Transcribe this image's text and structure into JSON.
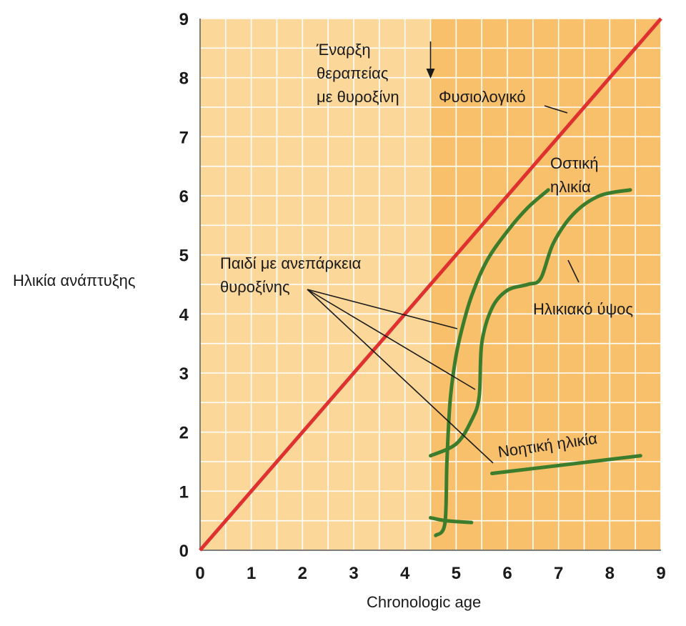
{
  "chart_data": {
    "type": "line",
    "xlabel": "Chronologic age",
    "ylabel": "Ηλικία ανάπτυξης",
    "xlim": [
      0,
      9
    ],
    "ylim": [
      0,
      9
    ],
    "x_ticks": [
      "0",
      "1",
      "2",
      "3",
      "4",
      "5",
      "6",
      "7",
      "8",
      "9"
    ],
    "y_ticks": [
      "0",
      "1",
      "2",
      "3",
      "4",
      "5",
      "6",
      "7",
      "8",
      "9"
    ],
    "grid": true,
    "therapy_start_x": 4.5,
    "colors": {
      "background_before_therapy": "#fcd79a",
      "background_after_therapy": "#f8c06a",
      "normal_line": "#e03131",
      "child_curves": "#3b7d2c"
    },
    "series": [
      {
        "name": "Φυσιολογικό",
        "x": [
          0,
          9
        ],
        "y": [
          0,
          9
        ]
      },
      {
        "name": "Οστική ηλικία",
        "x": [
          4.6,
          4.78,
          4.82,
          4.88,
          4.98,
          5.1,
          5.3,
          5.6,
          6.0,
          6.4,
          6.8
        ],
        "y": [
          0.25,
          0.45,
          1.5,
          2.5,
          3.2,
          3.7,
          4.3,
          4.9,
          5.4,
          5.8,
          6.1
        ]
      },
      {
        "name": "Ηλικιακό ύψος",
        "x": [
          4.5,
          5.0,
          5.3,
          5.45,
          5.5,
          5.7,
          6.0,
          6.4,
          6.65,
          6.9,
          7.3,
          7.8,
          8.4
        ],
        "y": [
          1.6,
          1.8,
          2.2,
          2.6,
          3.5,
          4.1,
          4.4,
          4.5,
          4.6,
          5.2,
          5.7,
          6.0,
          6.1
        ]
      },
      {
        "name": "Νοητική ηλικία",
        "x": [
          4.5,
          4.8,
          5.3
        ],
        "y": [
          0.55,
          0.5,
          0.47
        ]
      },
      {
        "name": "Νοητική ηλικία",
        "x": [
          5.7,
          8.6
        ],
        "y": [
          1.3,
          1.6
        ]
      }
    ],
    "annotations": {
      "therapy_start": [
        "Έναρξη",
        "θεραπείας",
        "με θυροξίνη"
      ],
      "normal": "Φυσιολογικό",
      "bone_age": [
        "Οστική",
        "ηλικία"
      ],
      "child_hypothyroid": [
        "Παιδί με ανεπάρκεια",
        "θυροξίνης"
      ],
      "height_age": "Ηλικιακό ύψος",
      "mental_age": "Νοητική ηλικία"
    }
  }
}
